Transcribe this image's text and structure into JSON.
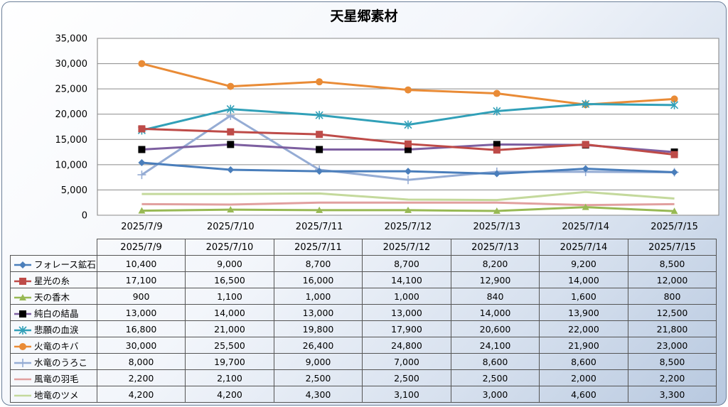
{
  "chart_data": {
    "type": "line",
    "title": "天星郷素材",
    "categories": [
      "2025/7/9",
      "2025/7/10",
      "2025/7/11",
      "2025/7/12",
      "2025/7/13",
      "2025/7/14",
      "2025/7/15"
    ],
    "ylim": [
      0,
      35000
    ],
    "yticks": [
      "0",
      "5,000",
      "10,000",
      "15,000",
      "20,000",
      "25,000",
      "30,000",
      "35,000"
    ],
    "grid": true,
    "legend": "data-table",
    "series": [
      {
        "name": "フォレース鉱石",
        "color": "#4a7ebb",
        "marker": "diamond",
        "values": [
          10400,
          9000,
          8700,
          8700,
          8200,
          9200,
          8500
        ],
        "labels": [
          "10,400",
          "9,000",
          "8,700",
          "8,700",
          "8,200",
          "9,200",
          "8,500"
        ]
      },
      {
        "name": "星光の糸",
        "color": "#be4b48",
        "marker": "square",
        "values": [
          17100,
          16500,
          16000,
          14100,
          12900,
          14000,
          12000
        ],
        "labels": [
          "17,100",
          "16,500",
          "16,000",
          "14,100",
          "12,900",
          "14,000",
          "12,000"
        ]
      },
      {
        "name": "天の香木",
        "color": "#98b954",
        "marker": "triangle",
        "values": [
          900,
          1100,
          1000,
          1000,
          840,
          1600,
          800
        ],
        "labels": [
          "900",
          "1,100",
          "1,000",
          "1,000",
          "840",
          "1,600",
          "800"
        ]
      },
      {
        "name": "純白の結晶",
        "color": "#7d5fa0",
        "marker": "blacksquare",
        "values": [
          13000,
          14000,
          13000,
          13000,
          14000,
          13900,
          12500
        ],
        "labels": [
          "13,000",
          "14,000",
          "13,000",
          "13,000",
          "14,000",
          "13,900",
          "12,500"
        ]
      },
      {
        "name": "悲願の血涙",
        "color": "#31a0b8",
        "marker": "star",
        "values": [
          16800,
          21000,
          19800,
          17900,
          20600,
          22000,
          21800
        ],
        "labels": [
          "16,800",
          "21,000",
          "19,800",
          "17,900",
          "20,600",
          "22,000",
          "21,800"
        ]
      },
      {
        "name": "火竜のキバ",
        "color": "#e98b36",
        "marker": "circle",
        "values": [
          30000,
          25500,
          26400,
          24800,
          24100,
          21900,
          23000
        ],
        "labels": [
          "30,000",
          "25,500",
          "26,400",
          "24,800",
          "24,100",
          "21,900",
          "23,000"
        ]
      },
      {
        "name": "水竜のうろこ",
        "color": "#95acd4",
        "marker": "plus",
        "values": [
          8000,
          19700,
          9000,
          7000,
          8600,
          8600,
          8500
        ],
        "labels": [
          "8,000",
          "19,700",
          "9,000",
          "7,000",
          "8,600",
          "8,600",
          "8,500"
        ]
      },
      {
        "name": "風竜の羽毛",
        "color": "#e1a09f",
        "marker": "none",
        "values": [
          2200,
          2100,
          2500,
          2500,
          2500,
          2000,
          2200
        ],
        "labels": [
          "2,200",
          "2,100",
          "2,500",
          "2,500",
          "2,500",
          "2,000",
          "2,200"
        ]
      },
      {
        "name": "地竜のツメ",
        "color": "#c4d99c",
        "marker": "none",
        "values": [
          4200,
          4200,
          4300,
          3100,
          3000,
          4600,
          3300
        ],
        "labels": [
          "4,200",
          "4,200",
          "4,300",
          "3,100",
          "3,000",
          "4,600",
          "3,300"
        ]
      }
    ]
  }
}
